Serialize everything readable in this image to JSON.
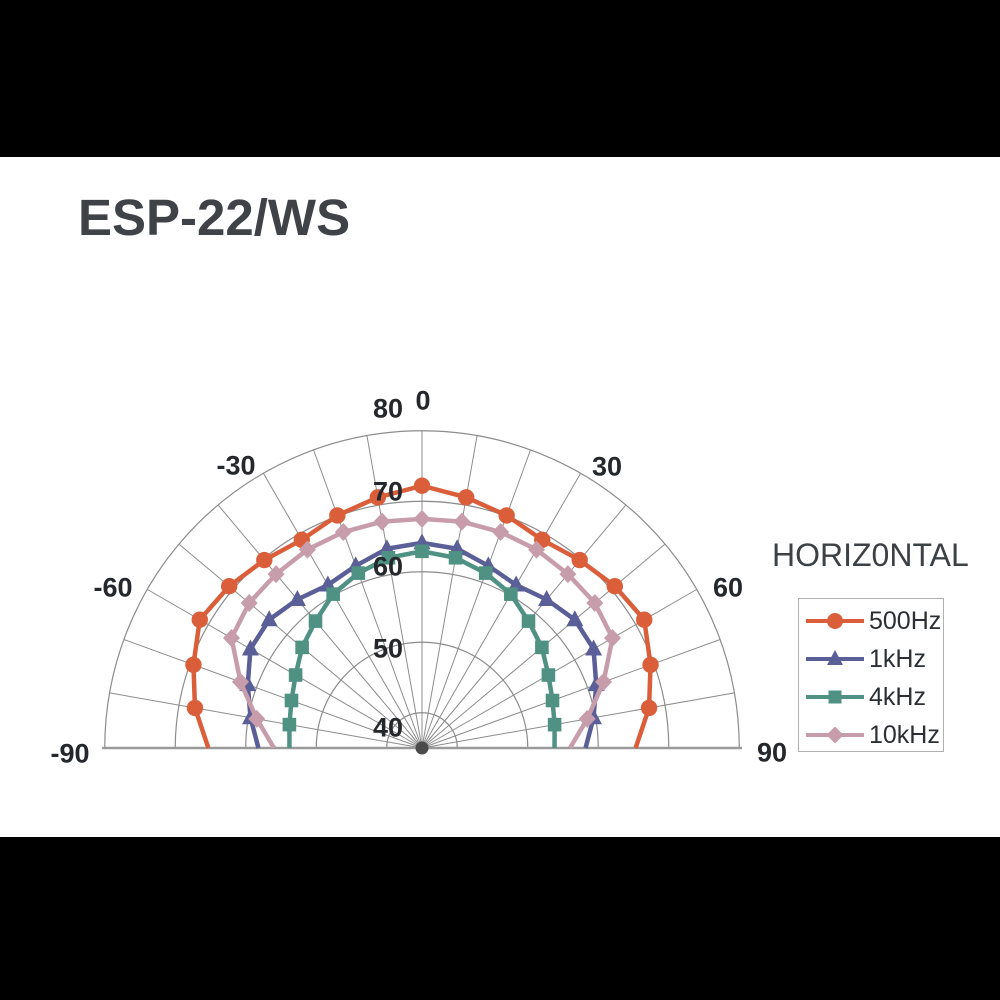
{
  "page": {
    "title": "ESP-22/WS"
  },
  "chart_data": {
    "type": "polar-half-radar",
    "title": "ESP-22/WS",
    "orientation_label": "HORIZ0NTAL",
    "angle_unit": "degrees",
    "angle_ticks": [
      "-90",
      "-60",
      "-30",
      "0",
      "30",
      "60",
      "90"
    ],
    "angle_tick_values": [
      -90,
      -60,
      -30,
      0,
      30,
      60,
      90
    ],
    "radial_ticks": [
      "40",
      "50",
      "60",
      "70",
      "80"
    ],
    "radial_tick_values": [
      40,
      50,
      60,
      70,
      80
    ],
    "radial_axis_min_at_center": 35,
    "radial_axis_max": 80,
    "grid": "on",
    "legend_position": "right",
    "angles_deg": [
      -90,
      -80,
      -70,
      -60,
      -50,
      -40,
      -30,
      -20,
      -10,
      0,
      10,
      20,
      30,
      40,
      50,
      60,
      70,
      80,
      90
    ],
    "series": [
      {
        "name": "500Hz",
        "color": "#DB5E3B",
        "marker": "circle",
        "values": [
          65.3,
          67.7,
          69.5,
          71.4,
          70.7,
          69.8,
          69.1,
          70.1,
          71.1,
          72.2,
          71.1,
          70.1,
          69.1,
          69.8,
          70.7,
          71.4,
          69.5,
          67.7,
          65.3
        ]
      },
      {
        "name": "1kHz",
        "color": "#5B5F97",
        "marker": "triangle",
        "values": [
          58.2,
          59.7,
          61.3,
          63.1,
          63.3,
          62.5,
          61.7,
          62.5,
          63.7,
          64.1,
          63.7,
          62.5,
          61.7,
          62.5,
          63.3,
          63.1,
          61.3,
          59.7,
          58.2
        ]
      },
      {
        "name": "4kHz",
        "color": "#4F9284",
        "marker": "square",
        "values": [
          53.8,
          54.1,
          54.7,
          55.7,
          57.2,
          58.5,
          60.2,
          61.4,
          62.4,
          62.9,
          62.4,
          61.4,
          60.2,
          58.5,
          57.2,
          55.7,
          54.7,
          54.1,
          53.8
        ]
      },
      {
        "name": "10kHz",
        "color": "#C89DAB",
        "marker": "diamond",
        "values": [
          56.0,
          58.8,
          62.4,
          66.2,
          67.0,
          67.2,
          67.5,
          67.6,
          67.6,
          67.5,
          67.6,
          67.6,
          67.5,
          67.2,
          67.0,
          66.2,
          62.4,
          58.8,
          56.0
        ]
      }
    ],
    "colors": {
      "grid": "#8c8c8c",
      "baseline": "#9a9a9a",
      "text": "#24272b"
    }
  }
}
